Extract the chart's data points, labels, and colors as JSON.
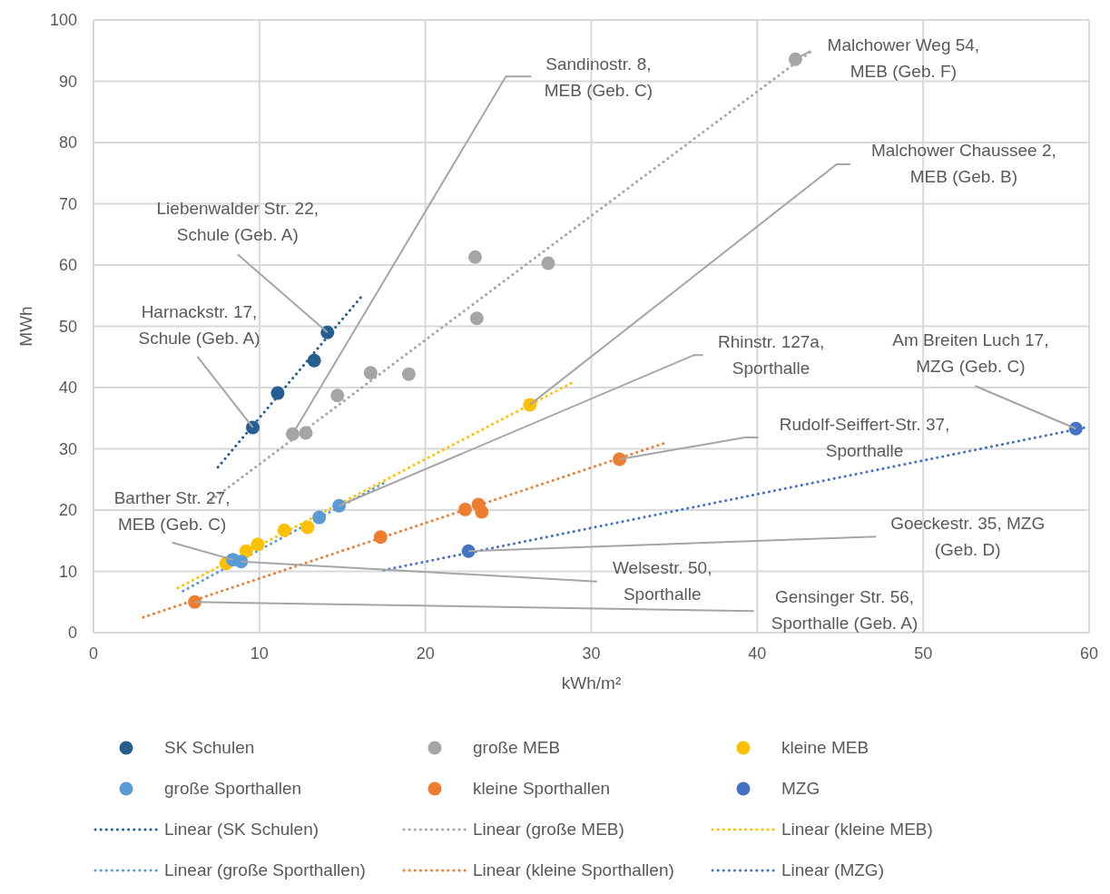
{
  "chart_data": {
    "type": "scatter",
    "xlabel": "kWh/m²",
    "ylabel": "MWh",
    "xlim": [
      0,
      60
    ],
    "xticks": [
      0,
      10,
      20,
      30,
      40,
      50,
      60
    ],
    "ylim": [
      0,
      100
    ],
    "yticks": [
      0,
      10,
      20,
      30,
      40,
      50,
      60,
      70,
      80,
      90,
      100
    ],
    "grid": true,
    "legend": "bottom",
    "marker": "circle",
    "series": [
      {
        "name": "SK Schulen",
        "type": "scatter",
        "color": "#255e91",
        "x": [
          9.6,
          11.1,
          13.3,
          14.1
        ],
        "values": [
          33.5,
          39.1,
          44.4,
          49.0
        ]
      },
      {
        "name": "große MEB",
        "type": "scatter",
        "color": "#a5a5a5",
        "x": [
          12.0,
          12.8,
          14.7,
          16.7,
          19.0,
          23.0,
          23.1,
          27.4,
          42.3
        ],
        "values": [
          32.4,
          32.6,
          38.7,
          42.4,
          42.2,
          61.3,
          51.3,
          60.3,
          93.6
        ]
      },
      {
        "name": "kleine MEB",
        "type": "scatter",
        "color": "#ffc000",
        "x": [
          8.0,
          9.2,
          9.9,
          11.5,
          12.9,
          26.3
        ],
        "values": [
          11.3,
          13.3,
          14.4,
          16.7,
          17.2,
          37.2
        ]
      },
      {
        "name": "große Sporthallen",
        "type": "scatter",
        "color": "#5b9bd5",
        "x": [
          8.4,
          8.9,
          13.6,
          14.8
        ],
        "values": [
          11.9,
          11.6,
          18.8,
          20.7
        ]
      },
      {
        "name": "kleine Sporthallen",
        "type": "scatter",
        "color": "#ed7d31",
        "x": [
          6.1,
          17.3,
          22.4,
          23.2,
          23.4,
          31.7
        ],
        "values": [
          5.0,
          15.6,
          20.1,
          20.9,
          19.7,
          28.3
        ]
      },
      {
        "name": "MZG",
        "type": "scatter",
        "color": "#4472c4",
        "x": [
          22.6,
          59.2
        ],
        "values": [
          13.3,
          33.3
        ]
      },
      {
        "name": "Linear (SK Schulen)",
        "type": "line",
        "line_style": "dotted",
        "marker": "none",
        "color": "#255e91",
        "x": [
          7.5,
          16.1
        ],
        "values": [
          27.0,
          54.7
        ]
      },
      {
        "name": "Linear (große MEB)",
        "type": "line",
        "line_style": "dotted",
        "marker": "none",
        "color": "#a5a5a5",
        "x": [
          7.1,
          43.3
        ],
        "values": [
          21.6,
          95.0
        ]
      },
      {
        "name": "Linear (kleine MEB)",
        "type": "line",
        "line_style": "dotted",
        "marker": "none",
        "color": "#ffc000",
        "x": [
          5.1,
          29.0
        ],
        "values": [
          7.3,
          41.0
        ]
      },
      {
        "name": "Linear (große Sporthallen)",
        "type": "line",
        "line_style": "dotted",
        "marker": "none",
        "color": "#5b9bd5",
        "x": [
          5.4,
          17.7
        ],
        "values": [
          6.8,
          24.7
        ]
      },
      {
        "name": "Linear (kleine Sporthallen)",
        "type": "line",
        "line_style": "dotted",
        "marker": "none",
        "color": "#ed7d31",
        "x": [
          3.0,
          34.5
        ],
        "values": [
          2.5,
          31.0
        ]
      },
      {
        "name": "Linear (MZG)",
        "type": "line",
        "line_style": "dotted",
        "marker": "none",
        "color": "#4472c4",
        "x": [
          17.5,
          60.0
        ],
        "values": [
          10.2,
          33.6
        ]
      }
    ],
    "annotations": [
      {
        "text": "Liebenwalder Str. 22,\nSchule (Geb. A)",
        "x": 14.1,
        "y": 49.0
      },
      {
        "text": "Harnackstr. 17,\nSchule (Geb. A)",
        "x": 9.6,
        "y": 33.5
      },
      {
        "text": "Sandinostr. 8,\nMEB (Geb. C)",
        "x": 12.0,
        "y": 32.4
      },
      {
        "text": "Malchower Weg 54,\nMEB (Geb. F)",
        "x": 42.3,
        "y": 93.6
      },
      {
        "text": "Malchower Chaussee 2,\nMEB (Geb. B)",
        "x": 26.3,
        "y": 37.2
      },
      {
        "text": "Rhinstr. 127a,\nSporthalle",
        "x": 14.8,
        "y": 20.7
      },
      {
        "text": "Am Breiten Luch 17,\nMZG (Geb. C)",
        "x": 59.2,
        "y": 33.3
      },
      {
        "text": "Rudolf-Seiffert-Str. 37,\nSporthalle",
        "x": 31.7,
        "y": 28.3
      },
      {
        "text": "Goeckestr. 35, MZG\n(Geb. D)",
        "x": 22.6,
        "y": 13.3
      },
      {
        "text": "Barther Str. 27,\nMEB (Geb. C)",
        "x": 8.4,
        "y": 11.9
      },
      {
        "text": "Welsestr. 50,\nSporthalle",
        "x": 8.9,
        "y": 11.6
      },
      {
        "text": "Gensinger Str. 56,\nSporthalle (Geb. A)",
        "x": 6.1,
        "y": 5.0
      }
    ]
  }
}
